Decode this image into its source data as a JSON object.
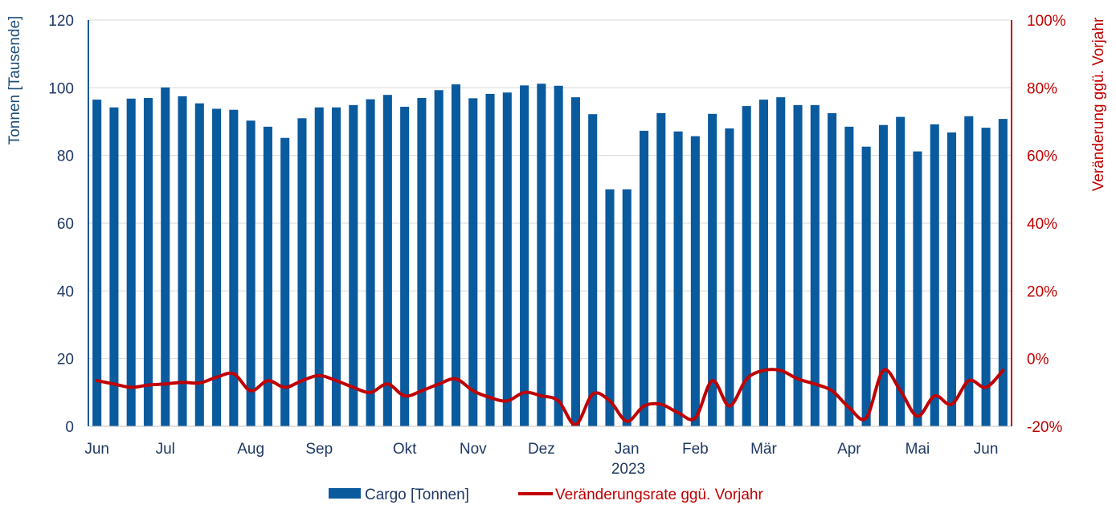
{
  "chart_data": {
    "type": "bar",
    "x_labels": [
      "Jun",
      "Jul",
      "Aug",
      "Sep",
      "Okt",
      "Nov",
      "Dez",
      "Jan",
      "Feb",
      "Mär",
      "Apr",
      "Mai",
      "Jun"
    ],
    "x_year_label": "2023",
    "ylabel": "Tonnen [Tausende]",
    "y2label": "Veränderung ggü. Vorjahr",
    "ylim": [
      0,
      120
    ],
    "y_ticks": [
      "0",
      "20",
      "40",
      "60",
      "80",
      "100",
      "120"
    ],
    "y2lim": [
      -20,
      100
    ],
    "y2_ticks": [
      "-20%",
      "0%",
      "20%",
      "40%",
      "60%",
      "80%",
      "100%"
    ],
    "grid": true,
    "legend_position": "bottom",
    "series": [
      {
        "name": "Cargo [Tonnen]",
        "kind": "bar",
        "color": "#0a5a9e",
        "values": [
          96.5,
          94.2,
          96.8,
          97.0,
          100.1,
          97.5,
          95.4,
          93.8,
          93.5,
          90.3,
          88.5,
          85.2,
          91.0,
          94.2,
          94.2,
          94.9,
          96.6,
          97.9,
          94.4,
          97.0,
          99.3,
          101.0,
          96.9,
          98.2,
          98.6,
          100.7,
          101.2,
          100.6,
          97.2,
          92.2,
          70.0,
          70.0,
          87.3,
          92.5,
          87.1,
          85.7,
          92.3,
          88.0,
          94.6,
          96.5,
          97.2,
          94.9,
          94.9,
          92.5,
          88.5,
          82.6,
          89.0,
          91.4,
          81.2,
          89.2,
          86.8,
          91.6,
          88.2,
          90.8
        ]
      },
      {
        "name": "Veränderungsrate ggü. Vorjahr",
        "kind": "line",
        "color": "#c00000",
        "values": [
          -6.5,
          -7.5,
          -8.5,
          -7.8,
          -7.5,
          -7.0,
          -7.2,
          -5.5,
          -4.5,
          -9.5,
          -6.5,
          -8.5,
          -6.5,
          -5.0,
          -6.5,
          -8.5,
          -10.0,
          -7.5,
          -11.0,
          -9.5,
          -7.5,
          -6.0,
          -9.5,
          -11.5,
          -12.5,
          -10.0,
          -11.0,
          -12.5,
          -19.5,
          -10.5,
          -12.5,
          -18.5,
          -14.0,
          -13.5,
          -16.0,
          -17.5,
          -6.5,
          -14.0,
          -6.0,
          -3.5,
          -3.5,
          -6.0,
          -7.5,
          -9.5,
          -14.5,
          -17.5,
          -3.5,
          -9.5,
          -17.0,
          -11.0,
          -13.5,
          -6.5,
          -8.5,
          -3.5
        ]
      }
    ]
  }
}
